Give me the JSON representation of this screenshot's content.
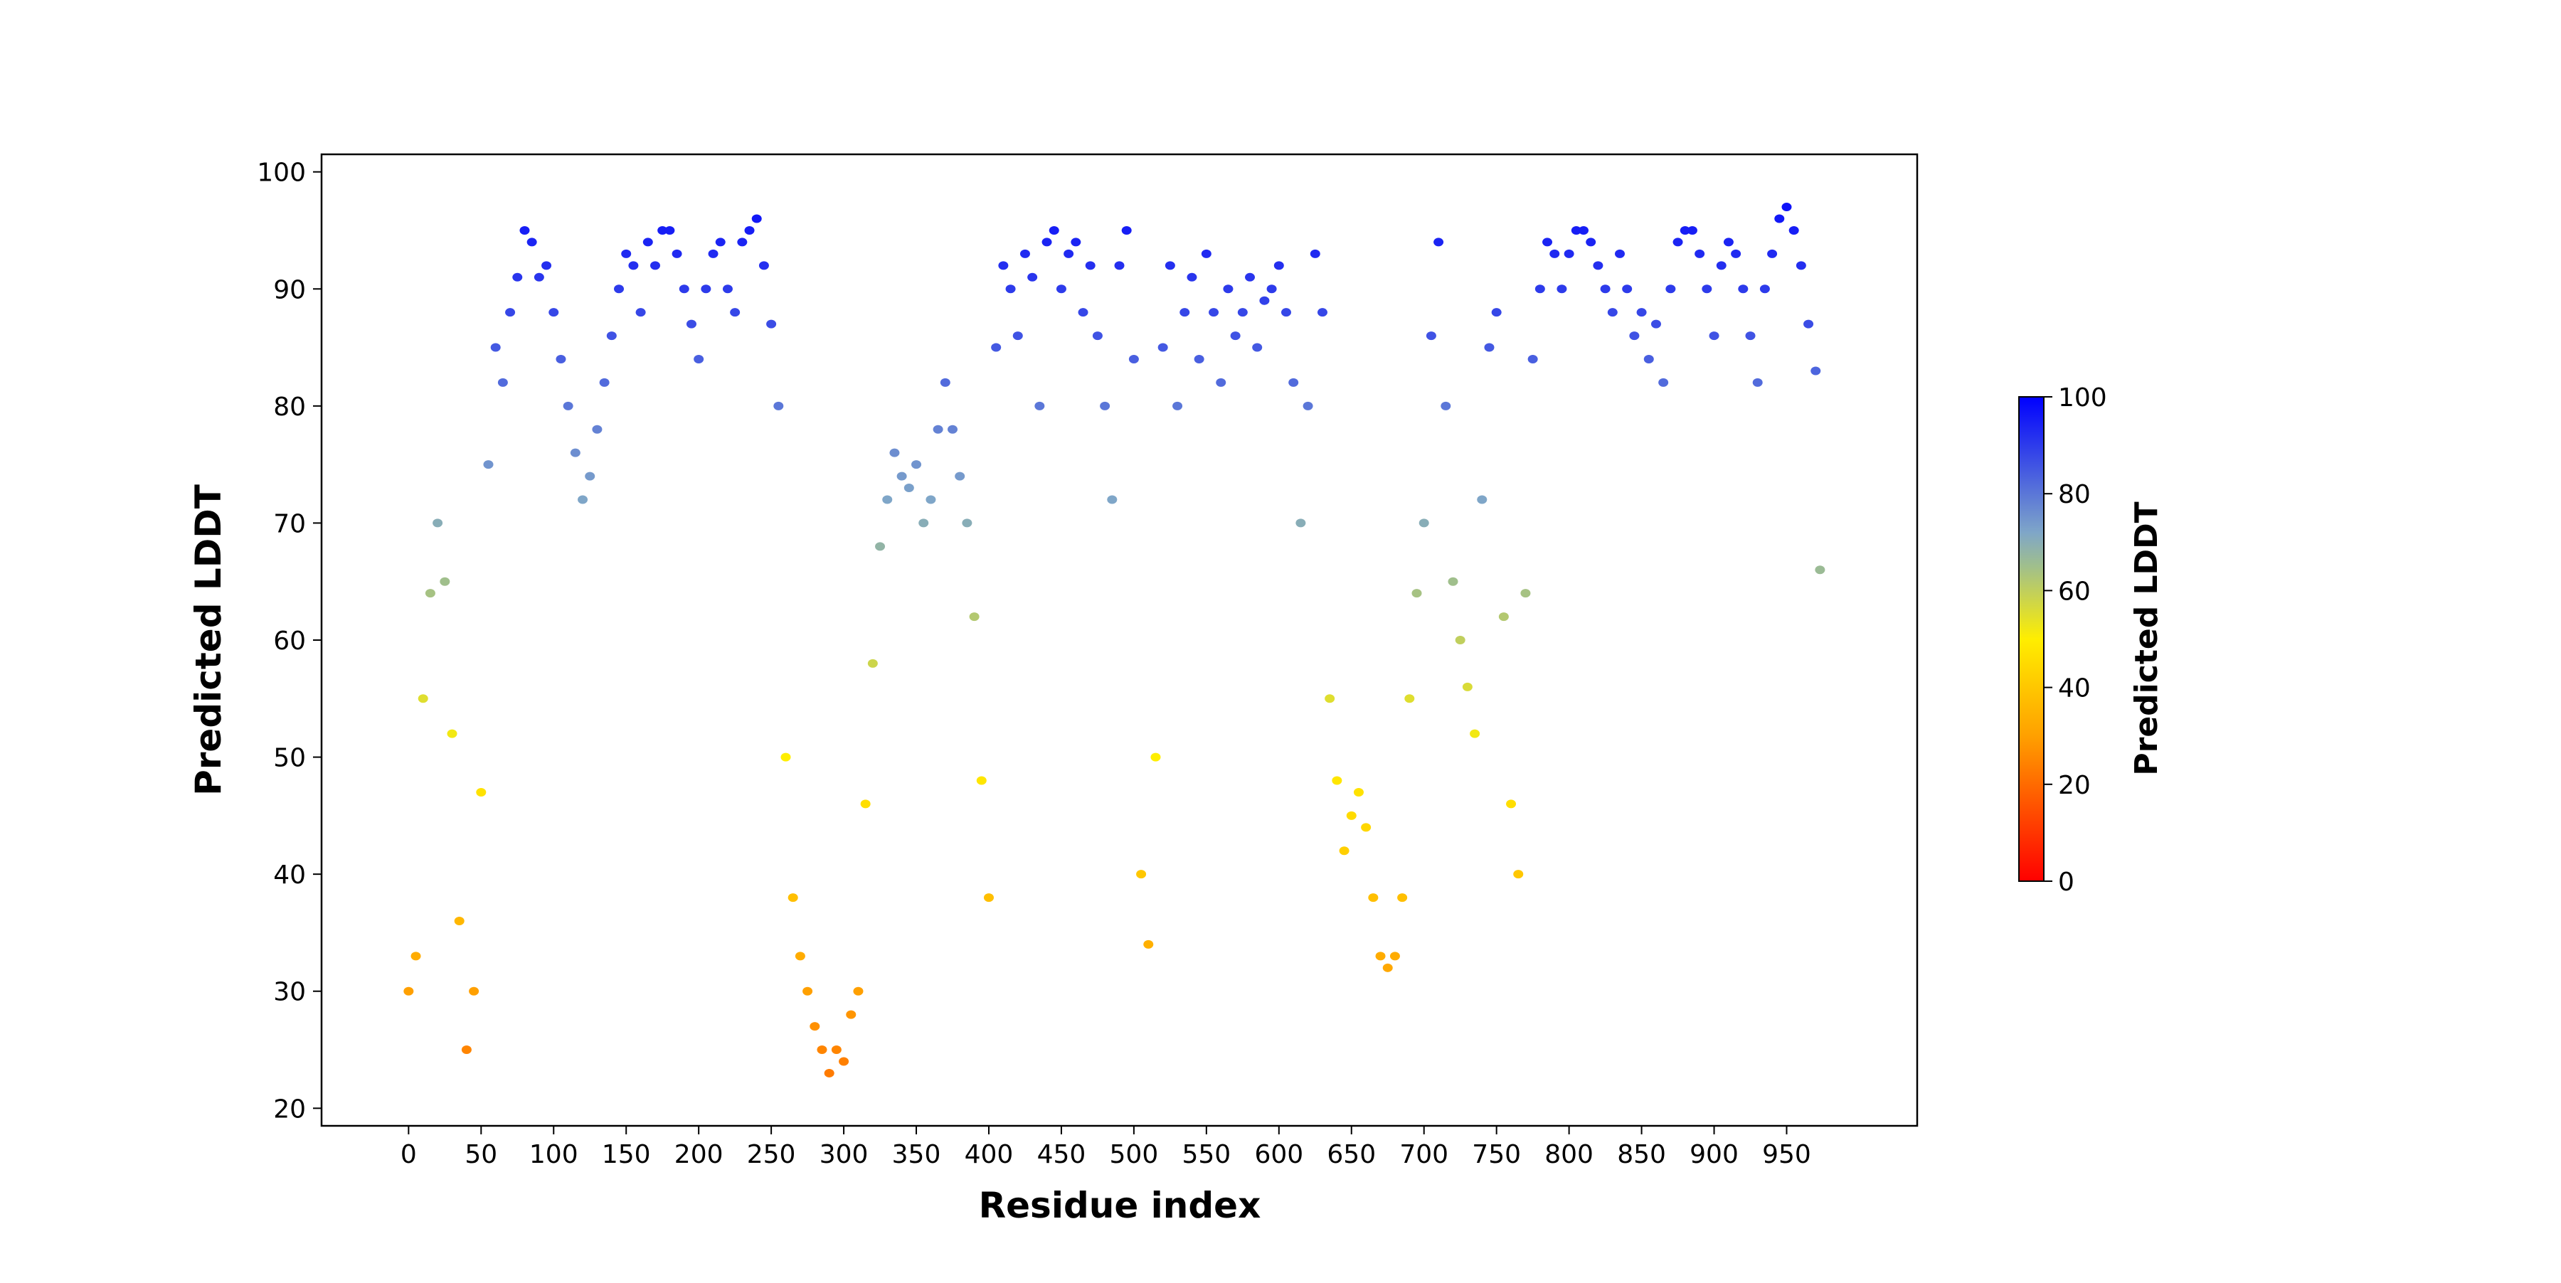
{
  "chart_data": {
    "type": "scatter",
    "title": "",
    "xlabel": "Residue index",
    "ylabel": "Predicted LDDT",
    "xlim": [
      -60,
      1040
    ],
    "ylim": [
      18.5,
      101.5
    ],
    "xticks": [
      0,
      50,
      100,
      150,
      200,
      250,
      300,
      350,
      400,
      450,
      500,
      550,
      600,
      650,
      700,
      750,
      800,
      850,
      900,
      950
    ],
    "yticks": [
      20,
      30,
      40,
      50,
      60,
      70,
      80,
      90,
      100
    ],
    "grid": false,
    "colorbar": {
      "label": "Predicted LDDT",
      "range": [
        0,
        100
      ],
      "ticks": [
        0,
        20,
        40,
        60,
        80,
        100
      ],
      "colormap": [
        [
          0,
          "#ff0000"
        ],
        [
          30,
          "#ffa000"
        ],
        [
          50,
          "#ffee00"
        ],
        [
          65,
          "#a0bf8c"
        ],
        [
          72,
          "#7fa6c8"
        ],
        [
          100,
          "#0000ff"
        ]
      ]
    },
    "sampling_note_x_step": 5,
    "x": [
      0,
      5,
      10,
      15,
      20,
      25,
      30,
      35,
      40,
      45,
      50,
      55,
      60,
      65,
      70,
      75,
      80,
      85,
      90,
      95,
      100,
      105,
      110,
      115,
      120,
      125,
      130,
      135,
      140,
      145,
      150,
      155,
      160,
      165,
      170,
      175,
      180,
      185,
      190,
      195,
      200,
      205,
      210,
      215,
      220,
      225,
      230,
      235,
      240,
      245,
      250,
      255,
      260,
      265,
      270,
      275,
      280,
      285,
      290,
      295,
      300,
      305,
      310,
      315,
      320,
      325,
      330,
      335,
      340,
      345,
      350,
      355,
      360,
      365,
      370,
      375,
      380,
      385,
      390,
      395,
      400,
      405,
      410,
      415,
      420,
      425,
      430,
      435,
      440,
      445,
      450,
      455,
      460,
      465,
      470,
      475,
      480,
      485,
      490,
      495,
      500,
      505,
      510,
      515,
      520,
      525,
      530,
      535,
      540,
      545,
      550,
      555,
      560,
      565,
      570,
      575,
      580,
      585,
      590,
      595,
      600,
      605,
      610,
      615,
      620,
      625,
      630,
      635,
      640,
      645,
      650,
      655,
      660,
      665,
      670,
      675,
      680,
      685,
      690,
      695,
      700,
      705,
      710,
      715,
      720,
      725,
      730,
      735,
      740,
      745,
      750,
      755,
      760,
      765,
      770,
      775,
      780,
      785,
      790,
      795,
      800,
      805,
      810,
      815,
      820,
      825,
      830,
      835,
      840,
      845,
      850,
      855,
      860,
      865,
      870,
      875,
      880,
      885,
      890,
      895,
      900,
      905,
      910,
      915,
      920,
      925,
      930,
      935,
      940,
      945,
      950,
      955,
      960,
      965,
      970,
      973
    ],
    "y": [
      30,
      33,
      55,
      64,
      70,
      65,
      52,
      36,
      25,
      30,
      47,
      75,
      85,
      82,
      88,
      91,
      95,
      94,
      91,
      92,
      88,
      84,
      80,
      76,
      72,
      74,
      78,
      82,
      86,
      90,
      93,
      92,
      88,
      94,
      92,
      95,
      95,
      93,
      90,
      87,
      84,
      90,
      93,
      94,
      90,
      88,
      94,
      95,
      96,
      92,
      87,
      80,
      50,
      38,
      33,
      30,
      27,
      25,
      23,
      25,
      24,
      28,
      30,
      46,
      58,
      68,
      72,
      76,
      74,
      73,
      75,
      70,
      72,
      78,
      82,
      78,
      74,
      70,
      62,
      48,
      38,
      85,
      92,
      90,
      86,
      93,
      91,
      80,
      94,
      95,
      90,
      93,
      94,
      88,
      92,
      86,
      80,
      72,
      92,
      95,
      84,
      40,
      34,
      50,
      85,
      92,
      80,
      88,
      91,
      84,
      93,
      88,
      82,
      90,
      86,
      88,
      91,
      85,
      89,
      90,
      92,
      88,
      82,
      70,
      80,
      93,
      88,
      55,
      48,
      42,
      45,
      47,
      44,
      38,
      33,
      32,
      33,
      38,
      55,
      64,
      70,
      86,
      94,
      80,
      65,
      60,
      56,
      52,
      72,
      85,
      88,
      62,
      46,
      40,
      64,
      84,
      90,
      94,
      93,
      90,
      93,
      95,
      95,
      94,
      92,
      90,
      88,
      93,
      90,
      86,
      88,
      84,
      87,
      82,
      90,
      94,
      95,
      95,
      93,
      90,
      86,
      92,
      94,
      93,
      90,
      86,
      82,
      90,
      93,
      96,
      97,
      95,
      92,
      87,
      83,
      66
    ]
  }
}
